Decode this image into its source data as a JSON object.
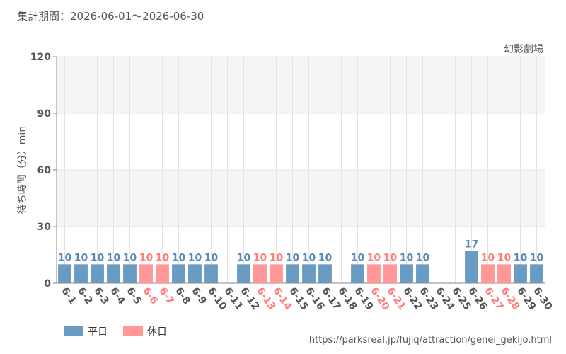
{
  "period_text": "集計期間：2026-06-01～2026-06-30",
  "source_url": "https://parksreal.jp/fujiq/attraction/genei_gekijo.html",
  "colors": {
    "weekday": "#6a9bc3",
    "holiday": "#ff9896",
    "weekday_label": "#5a8bb7",
    "holiday_label": "#ff7f7f",
    "tick": "#555555"
  },
  "legend": [
    {
      "label": "平日",
      "type": "weekday"
    },
    {
      "label": "休日",
      "type": "holiday"
    }
  ],
  "chart_data": {
    "type": "bar",
    "title": "幻影劇場",
    "ylabel": "待ち時間（分）min",
    "xlabel": "",
    "ylim": [
      0,
      120
    ],
    "yticks": [
      "0",
      "30",
      "60",
      "90",
      "120"
    ],
    "grid": true,
    "categories": [
      "6-1",
      "6-2",
      "6-3",
      "6-4",
      "6-5",
      "6-6",
      "6-7",
      "6-8",
      "6-9",
      "6-10",
      "6-11",
      "6-12",
      "6-13",
      "6-14",
      "6-15",
      "6-16",
      "6-17",
      "6-18",
      "6-19",
      "6-20",
      "6-21",
      "6-22",
      "6-23",
      "6-24",
      "6-25",
      "6-26",
      "6-27",
      "6-28",
      "6-29",
      "6-30"
    ],
    "values": [
      10,
      10,
      10,
      10,
      10,
      10,
      10,
      10,
      10,
      10,
      null,
      10,
      10,
      10,
      10,
      10,
      10,
      null,
      10,
      10,
      10,
      10,
      10,
      null,
      null,
      17,
      10,
      10,
      10,
      10
    ],
    "day_type": [
      "weekday",
      "weekday",
      "weekday",
      "weekday",
      "weekday",
      "holiday",
      "holiday",
      "weekday",
      "weekday",
      "weekday",
      "weekday",
      "weekday",
      "holiday",
      "holiday",
      "weekday",
      "weekday",
      "weekday",
      "weekday",
      "weekday",
      "holiday",
      "holiday",
      "weekday",
      "weekday",
      "weekday",
      "weekday",
      "weekday",
      "holiday",
      "holiday",
      "weekday",
      "weekday"
    ],
    "value_labels": [
      "10",
      "10",
      "10",
      "10",
      "10",
      "10",
      "10",
      "10",
      "10",
      "10",
      "",
      "10",
      "10",
      "10",
      "10",
      "10",
      "10",
      "",
      "10",
      "10",
      "10",
      "10",
      "10",
      "",
      "",
      "17",
      "10",
      "10",
      "10",
      "10"
    ]
  }
}
